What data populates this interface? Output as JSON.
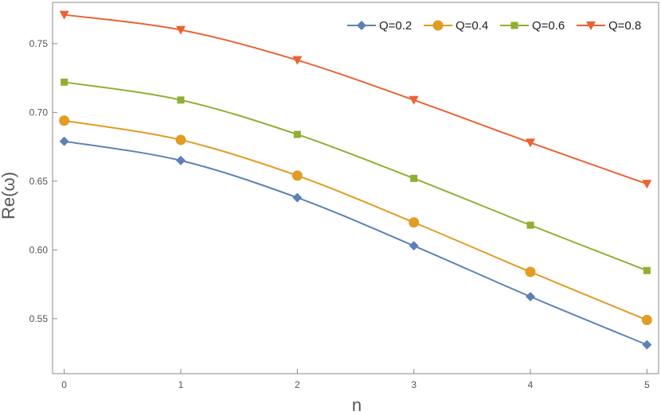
{
  "chart_data": {
    "type": "line",
    "title": "",
    "xlabel": "n",
    "ylabel": "Re(ω)",
    "x": [
      0,
      1,
      2,
      3,
      4,
      5
    ],
    "xlim": [
      -0.1,
      5.1
    ],
    "ylim": [
      0.51,
      0.78
    ],
    "xticks": [
      "0",
      "1",
      "2",
      "3",
      "4",
      "5"
    ],
    "yticks": [
      "0.55",
      "0.60",
      "0.65",
      "0.70",
      "0.75"
    ],
    "ytick_values": [
      0.55,
      0.6,
      0.65,
      0.7,
      0.75
    ],
    "grid": false,
    "legend_position": "top-right",
    "series": [
      {
        "name": "Q=0.2",
        "color": "#5e81b5",
        "marker": "diamond",
        "values": [
          0.679,
          0.665,
          0.638,
          0.603,
          0.566,
          0.531
        ]
      },
      {
        "name": "Q=0.4",
        "color": "#e19c24",
        "marker": "circle",
        "values": [
          0.694,
          0.68,
          0.654,
          0.62,
          0.584,
          0.549
        ]
      },
      {
        "name": "Q=0.6",
        "color": "#8fb032",
        "marker": "square",
        "values": [
          0.722,
          0.709,
          0.684,
          0.652,
          0.618,
          0.585
        ]
      },
      {
        "name": "Q=0.8",
        "color": "#eb6235",
        "marker": "triangle-down",
        "values": [
          0.771,
          0.76,
          0.738,
          0.709,
          0.678,
          0.648
        ]
      }
    ]
  }
}
